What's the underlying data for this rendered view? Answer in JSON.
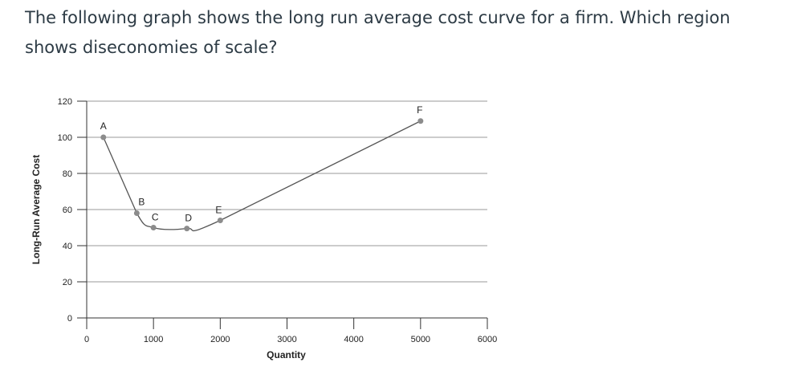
{
  "question": "The following graph shows the long run average cost curve for a firm. Which region shows diseconomies of scale?",
  "chart_data": {
    "type": "line",
    "title": "",
    "xlabel": "Quantity",
    "ylabel": "Long-Run Average Cost",
    "xlim": [
      0,
      6000
    ],
    "ylim": [
      0,
      120
    ],
    "x_ticks": [
      0,
      1000,
      2000,
      3000,
      4000,
      5000,
      6000
    ],
    "y_ticks": [
      0,
      20,
      40,
      60,
      80,
      100,
      120
    ],
    "grid": "horizontal",
    "legend": "none",
    "colors": {
      "line": "#555555",
      "point": "#8c8c8c",
      "grid": "#999999"
    },
    "points": [
      {
        "label": "A",
        "x": 250,
        "y": 100
      },
      {
        "label": "B",
        "x": 750,
        "y": 58
      },
      {
        "label": "C",
        "x": 1000,
        "y": 50
      },
      {
        "label": "D",
        "x": 1500,
        "y": 49.5
      },
      {
        "label": "E",
        "x": 2000,
        "y": 54
      },
      {
        "label": "F",
        "x": 5000,
        "y": 109
      }
    ]
  }
}
